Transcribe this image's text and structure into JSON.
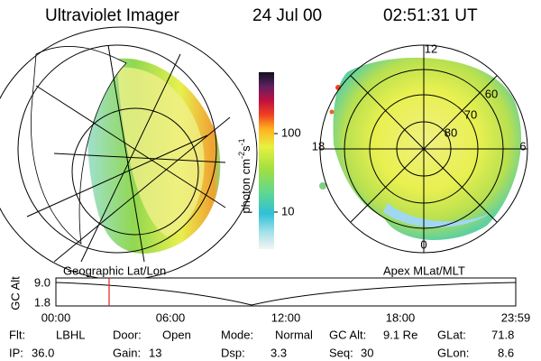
{
  "header": {
    "title": "Ultraviolet Imager",
    "date": "24 Jul 00",
    "time": "02:51:31 UT"
  },
  "colorbar": {
    "unit": "photon cm",
    "exp1": "-2",
    "unit2": "s",
    "exp2": "-1",
    "ticks": [
      "100",
      "10"
    ]
  },
  "left_panel": {
    "label": "Geographic Lat/Lon"
  },
  "right_panel": {
    "label": "Apex MLat/MLT",
    "mlt": [
      "12",
      "6",
      "0",
      "18"
    ],
    "mlat": [
      "60",
      "70",
      "80"
    ]
  },
  "strip": {
    "axis_label": "GC Alt",
    "ticks": [
      "9.0",
      "1.8"
    ],
    "times": [
      "00:00",
      "06:00",
      "12:00",
      "18:00",
      "23:59"
    ]
  },
  "footer": {
    "rows": [
      [
        [
          "Flt:",
          "LBHL"
        ],
        [
          "Door:",
          "Open"
        ],
        [
          "Mode:",
          "Normal"
        ],
        [
          "GC Alt:",
          "9.1 Re"
        ],
        [
          "GLat:",
          "71.8"
        ]
      ],
      [
        [
          "IP:",
          "36.0"
        ],
        [
          "Gain:",
          "13"
        ],
        [
          "Dsp:",
          "3.3"
        ],
        [
          "Seq:",
          "30"
        ],
        [
          "GLon:",
          "8.6"
        ]
      ]
    ]
  }
}
